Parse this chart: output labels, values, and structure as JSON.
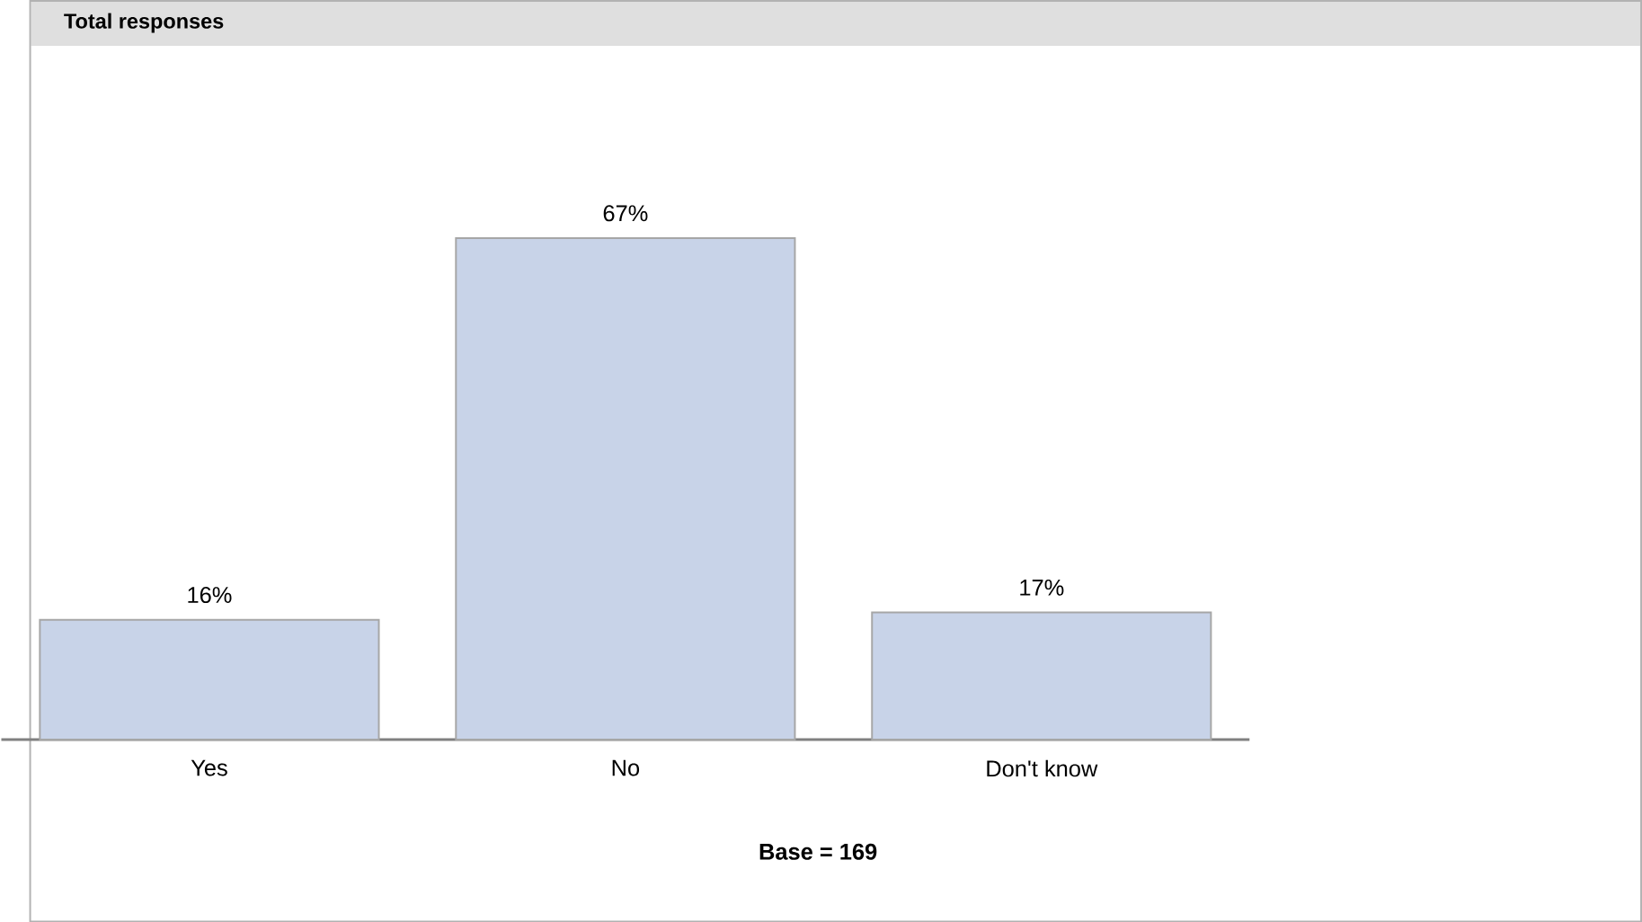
{
  "chart_data": {
    "type": "bar",
    "title": "Total responses",
    "categories": [
      "Yes",
      "No",
      "Don't know"
    ],
    "values": [
      16,
      67,
      17
    ],
    "value_labels": [
      "16%",
      "67%",
      "17%"
    ],
    "color": "#c8d3e8",
    "annotations": [
      "Base = 169"
    ]
  }
}
